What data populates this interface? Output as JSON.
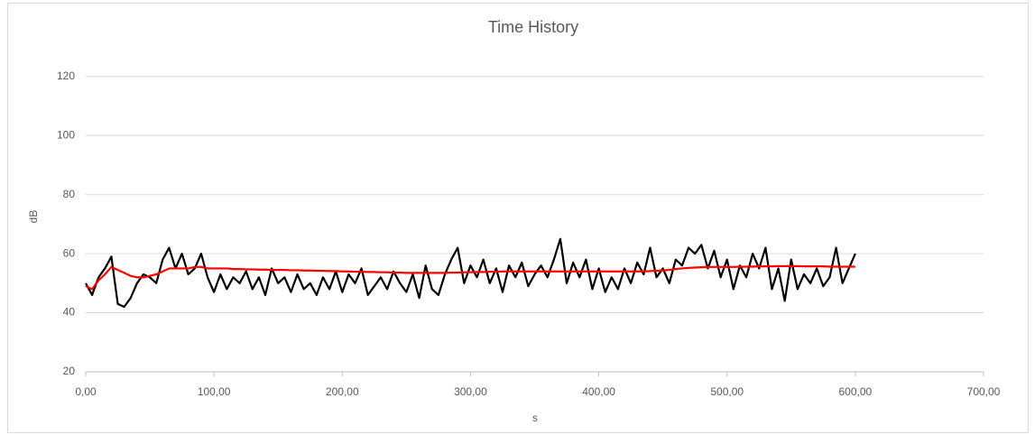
{
  "chart_data": {
    "type": "line",
    "title": "Time History",
    "x_label": "s",
    "y_label": "dB",
    "xlim": [
      0,
      700
    ],
    "xticks": [
      {
        "value": 0,
        "label": "0,00"
      },
      {
        "value": 100,
        "label": "100,00"
      },
      {
        "value": 200,
        "label": "200,00"
      },
      {
        "value": 300,
        "label": "300,00"
      },
      {
        "value": 400,
        "label": "400,00"
      },
      {
        "value": 500,
        "label": "500,00"
      },
      {
        "value": 600,
        "label": "600,00"
      },
      {
        "value": 700,
        "label": "700,00"
      }
    ],
    "ylim": [
      20,
      130
    ],
    "yticks": [
      20,
      40,
      60,
      80,
      100,
      120
    ],
    "grid": true,
    "x": [
      0,
      5,
      10,
      15,
      20,
      25,
      30,
      35,
      40,
      45,
      50,
      55,
      60,
      65,
      70,
      75,
      80,
      85,
      90,
      95,
      100,
      105,
      110,
      115,
      120,
      125,
      130,
      135,
      140,
      145,
      150,
      155,
      160,
      165,
      170,
      175,
      180,
      185,
      190,
      195,
      200,
      205,
      210,
      215,
      220,
      225,
      230,
      235,
      240,
      245,
      250,
      255,
      260,
      265,
      270,
      275,
      280,
      285,
      290,
      295,
      300,
      305,
      310,
      315,
      320,
      325,
      330,
      335,
      340,
      345,
      350,
      355,
      360,
      365,
      370,
      375,
      380,
      385,
      390,
      395,
      400,
      405,
      410,
      415,
      420,
      425,
      430,
      435,
      440,
      445,
      450,
      455,
      460,
      465,
      470,
      475,
      480,
      485,
      490,
      495,
      500,
      505,
      510,
      515,
      520,
      525,
      530,
      535,
      540,
      545,
      550,
      555,
      560,
      565,
      570,
      575,
      580,
      585,
      590,
      595,
      600
    ],
    "series": [
      {
        "color": "#000000",
        "values": [
          50,
          46,
          52,
          55,
          59,
          43,
          42,
          45,
          50,
          53,
          52,
          50,
          58,
          62,
          55,
          60,
          53,
          55,
          60,
          52,
          47,
          53,
          48,
          52,
          50,
          54,
          48,
          52,
          46,
          55,
          50,
          52,
          47,
          53,
          48,
          50,
          46,
          52,
          48,
          54,
          47,
          53,
          50,
          55,
          46,
          49,
          52,
          48,
          54,
          50,
          47,
          53,
          45,
          56,
          48,
          46,
          53,
          58,
          62,
          50,
          56,
          52,
          58,
          50,
          55,
          47,
          56,
          52,
          57,
          49,
          53,
          56,
          52,
          58,
          65,
          50,
          57,
          52,
          58,
          48,
          55,
          47,
          52,
          48,
          55,
          50,
          57,
          53,
          62,
          52,
          55,
          50,
          58,
          56,
          62,
          60,
          63,
          55,
          61,
          52,
          58,
          48,
          56,
          52,
          60,
          55,
          62,
          48,
          55,
          44,
          58,
          48,
          53,
          50,
          55,
          49,
          52,
          62,
          50,
          55,
          60
        ]
      },
      {
        "color": "#ff0000",
        "values": [
          49,
          48,
          51,
          53,
          55.5,
          54.5,
          53.5,
          52.5,
          52,
          52,
          52.5,
          53,
          54,
          55,
          55,
          55,
          55,
          55.5,
          55.5,
          55,
          55,
          55,
          55,
          54.8,
          54.8,
          54.7,
          54.7,
          54.6,
          54.6,
          54.5,
          54.5,
          54.5,
          54.4,
          54.4,
          54.3,
          54.3,
          54.2,
          54.2,
          54.1,
          54.1,
          54,
          54,
          53.9,
          53.9,
          53.8,
          53.8,
          53.7,
          53.7,
          53.6,
          53.6,
          53.5,
          53.5,
          53.5,
          53.5,
          53.5,
          53.5,
          53.5,
          53.6,
          53.6,
          53.7,
          53.7,
          53.8,
          53.8,
          53.9,
          53.9,
          54,
          54,
          54,
          54,
          54,
          54,
          54,
          54,
          54,
          54,
          54,
          54,
          54,
          54,
          54,
          54,
          54,
          54,
          54,
          54,
          54,
          54,
          54,
          54.1,
          54.2,
          54.3,
          54.5,
          54.8,
          55,
          55.2,
          55.3,
          55.4,
          55.5,
          55.5,
          55.5,
          55.5,
          55.5,
          55.6,
          55.6,
          55.6,
          55.7,
          55.7,
          55.7,
          55.8,
          55.8,
          55.8,
          55.8,
          55.7,
          55.7,
          55.7,
          55.7,
          55.6,
          55.6,
          55.6,
          55.6,
          55.6
        ]
      }
    ]
  }
}
